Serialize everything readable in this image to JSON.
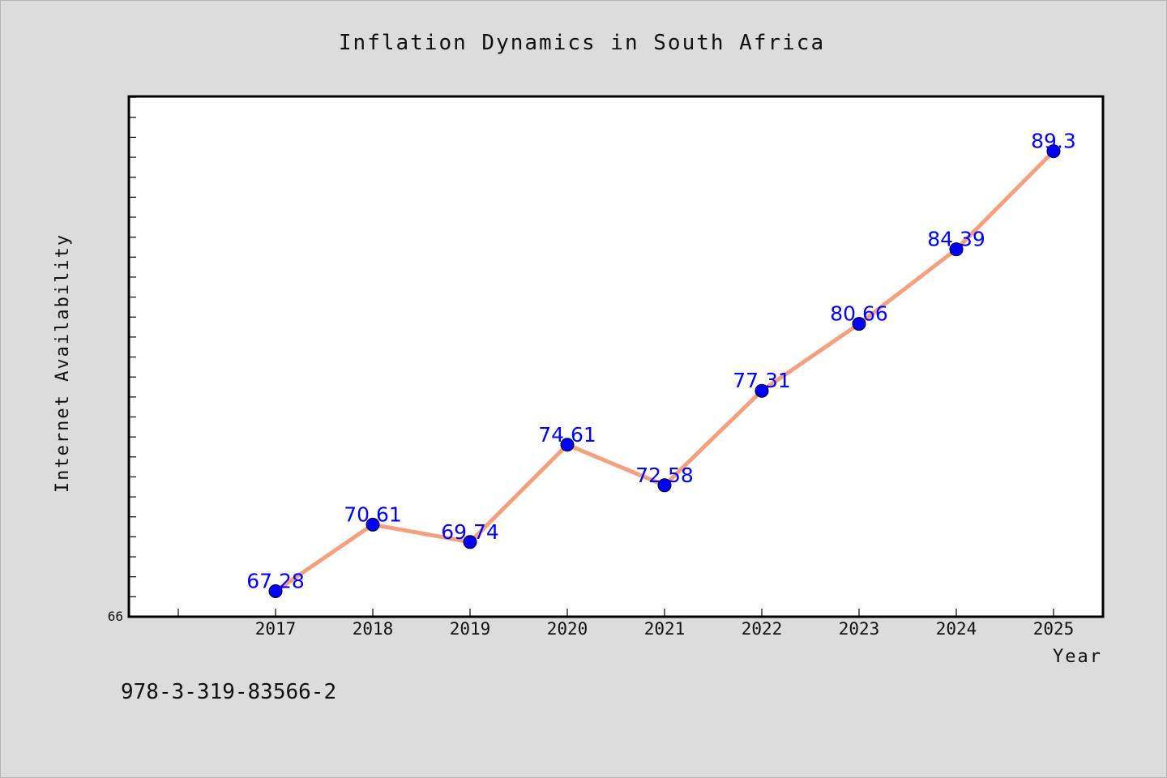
{
  "chart_data": {
    "type": "line",
    "title": "Inflation Dynamics in South Africa",
    "xlabel": "Year",
    "ylabel": "Internet Availability",
    "categories": [
      "2017",
      "2018",
      "2019",
      "2020",
      "2021",
      "2022",
      "2023",
      "2024",
      "2025"
    ],
    "series": [
      {
        "values": [
          67.28,
          70.61,
          69.74,
          74.61,
          72.58,
          77.31,
          80.66,
          84.39,
          89.3
        ],
        "data_labels": [
          "67.28",
          "70.61",
          "69.74",
          "74.61",
          "72.58",
          "77.31",
          "80.66",
          "84.39",
          "89.3"
        ]
      }
    ],
    "ylim": [
      66,
      92
    ],
    "y_tick_labels": [
      "66"
    ],
    "grid": false,
    "legend": "none",
    "colors": {
      "line": "#f4a07e",
      "marker": "#0000ff",
      "marker_edge": "#000000",
      "label": "#0000ff",
      "plot_background": "#ffffff",
      "page_background": "#dcdcdc"
    }
  },
  "footer": {
    "isbn": "978-3-319-83566-2"
  }
}
